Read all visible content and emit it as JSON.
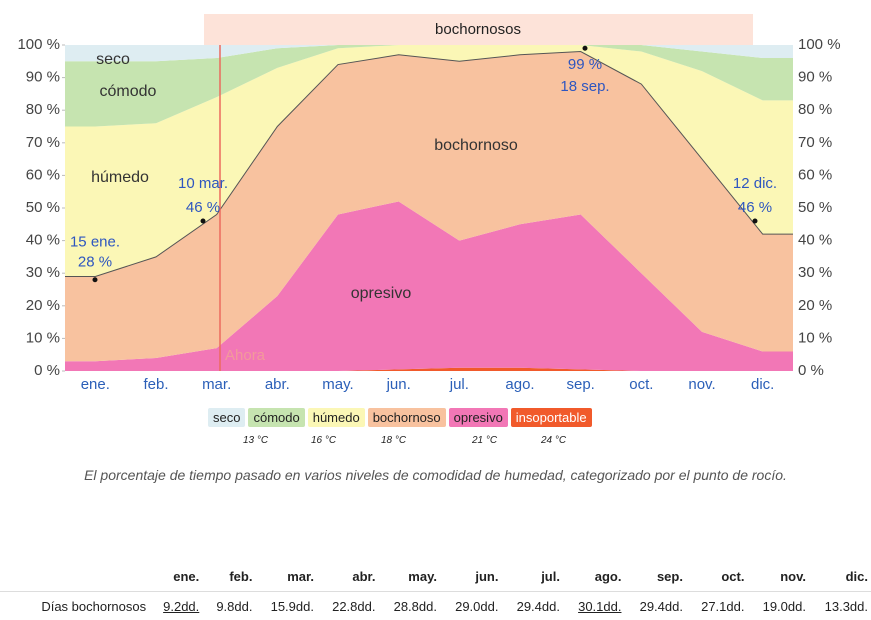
{
  "chart_data": {
    "type": "stacked_area",
    "band_label": "bochornosos",
    "now_label": "Ahora",
    "categories": [
      "ene.",
      "feb.",
      "mar.",
      "abr.",
      "may.",
      "jun.",
      "jul.",
      "ago.",
      "sep.",
      "oct.",
      "nov.",
      "dic."
    ],
    "series": [
      {
        "name": "seco",
        "color": "#deedf2",
        "values": [
          5,
          5,
          4,
          1,
          0,
          0,
          0,
          0,
          0,
          0,
          2,
          4
        ]
      },
      {
        "name": "cómodo",
        "color": "#c6e4b0",
        "values": [
          20,
          19,
          12,
          6,
          1,
          0,
          0,
          0,
          0,
          2,
          6,
          13
        ]
      },
      {
        "name": "húmedo",
        "color": "#fbf7b6",
        "values": [
          46,
          41,
          36,
          18,
          5,
          3,
          5,
          3,
          2,
          10,
          27,
          41
        ]
      },
      {
        "name": "bochornoso",
        "color": "#f8c29f",
        "values": [
          26,
          31,
          41,
          52,
          46,
          45,
          55,
          52,
          50,
          58,
          53,
          36
        ]
      },
      {
        "name": "opresivo",
        "color": "#f277b6",
        "values": [
          3,
          4,
          7,
          23,
          48,
          51.5,
          39,
          44,
          47.5,
          30,
          12,
          6
        ]
      },
      {
        "name": "insoportable",
        "color": "#f15a2b",
        "values": [
          0,
          0,
          0,
          0,
          0,
          0.5,
          1,
          1,
          0.5,
          0,
          0,
          0
        ]
      }
    ],
    "legend_thresholds": [
      "13 °C",
      "16 °C",
      "18 °C",
      "21 °C",
      "24 °C"
    ],
    "annotations": [
      {
        "date": "15 ene.",
        "value": 28,
        "label": "28 %"
      },
      {
        "date": "10 mar.",
        "value": 46,
        "label": "46 %"
      },
      {
        "date": "18 sep.",
        "value": 99,
        "label": "99 %"
      },
      {
        "date": "12 dic.",
        "value": 46,
        "label": "46 %"
      }
    ],
    "ylim": [
      0,
      100
    ],
    "yticks": [
      {
        "value": 0,
        "label": "0 %"
      },
      {
        "value": 10,
        "label": "10 %"
      },
      {
        "value": 20,
        "label": "20 %"
      },
      {
        "value": 30,
        "label": "30 %"
      },
      {
        "value": 40,
        "label": "40 %"
      },
      {
        "value": 50,
        "label": "50 %"
      },
      {
        "value": 60,
        "label": "60 %"
      },
      {
        "value": 70,
        "label": "70 %"
      },
      {
        "value": 80,
        "label": "80 %"
      },
      {
        "value": 90,
        "label": "90 %"
      },
      {
        "value": 100,
        "label": "100 %"
      }
    ],
    "grid": false,
    "caption": "El porcentaje de tiempo pasado en varios niveles de comodidad de humedad, categorizado por el punto de rocío."
  },
  "table": {
    "header": [
      "ene.",
      "feb.",
      "mar.",
      "abr.",
      "may.",
      "jun.",
      "jul.",
      "ago.",
      "sep.",
      "oct.",
      "nov.",
      "dic."
    ],
    "rows": [
      [
        "Días bochornosos",
        "9.2dd.",
        "9.8dd.",
        "15.9dd.",
        "22.8dd.",
        "28.8dd.",
        "29.0dd.",
        "29.4dd.",
        "30.1dd.",
        "29.4dd.",
        "27.1dd.",
        "19.0dd.",
        "13.3dd."
      ]
    ]
  }
}
